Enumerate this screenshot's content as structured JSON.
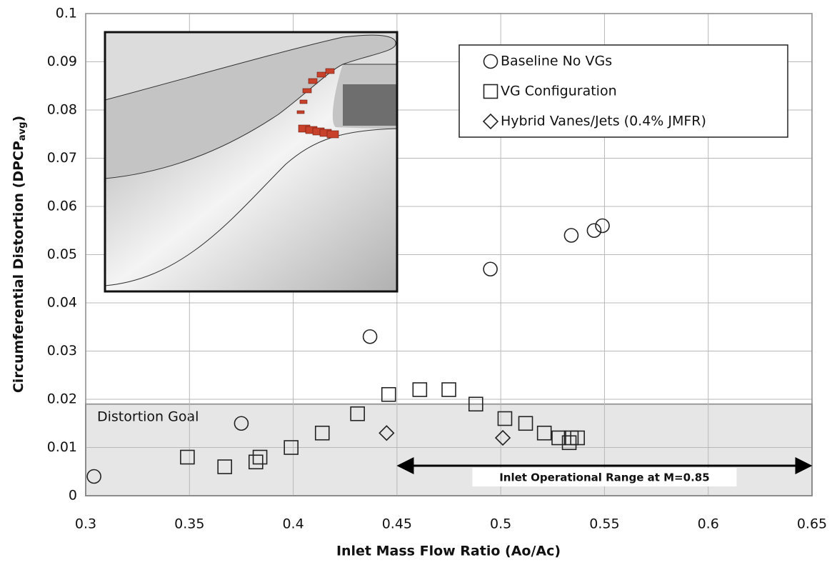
{
  "chart_data": {
    "type": "scatter",
    "x_label": "Inlet Mass Flow Ratio (Ao/Ac)",
    "y_label": [
      "Circumferential Distortion (DPCP",
      "avg",
      ")"
    ],
    "xlim": [
      0.3,
      0.65
    ],
    "xticks": [
      0.3,
      0.35,
      0.4,
      0.45,
      0.5,
      0.55,
      0.6,
      0.65
    ],
    "ylim": [
      0,
      0.1
    ],
    "yticks": [
      0,
      0.01,
      0.02,
      0.03,
      0.04,
      0.05,
      0.06,
      0.07,
      0.08,
      0.09,
      0.1
    ],
    "grid": true,
    "legend": "upper right",
    "series": [
      {
        "name": "Baseline No VGs",
        "marker": "circle",
        "color": "#222222",
        "x": [
          0.304,
          0.375,
          0.437,
          0.495,
          0.534,
          0.545,
          0.549
        ],
        "values": [
          0.004,
          0.015,
          0.033,
          0.047,
          0.054,
          0.055,
          0.056
        ]
      },
      {
        "name": "VG Configuration",
        "marker": "square",
        "color": "#222222",
        "x": [
          0.349,
          0.367,
          0.382,
          0.384,
          0.399,
          0.414,
          0.431,
          0.446,
          0.461,
          0.475,
          0.488,
          0.502,
          0.512,
          0.521,
          0.528,
          0.533,
          0.534,
          0.537
        ],
        "values": [
          0.008,
          0.006,
          0.007,
          0.008,
          0.01,
          0.013,
          0.017,
          0.021,
          0.022,
          0.022,
          0.019,
          0.016,
          0.015,
          0.013,
          0.012,
          0.011,
          0.012,
          0.012
        ]
      },
      {
        "name": "Hybrid Vanes/Jets (0.4% JMFR)",
        "marker": "diamond",
        "color": "#222222",
        "x": [
          0.445,
          0.501
        ],
        "values": [
          0.013,
          0.012
        ]
      }
    ],
    "goal": {
      "label": "Distortion Goal",
      "value": 0.019
    },
    "range": {
      "label": "Inlet Operational Range at M=0.85",
      "from": 0.45,
      "to": 0.65
    }
  }
}
